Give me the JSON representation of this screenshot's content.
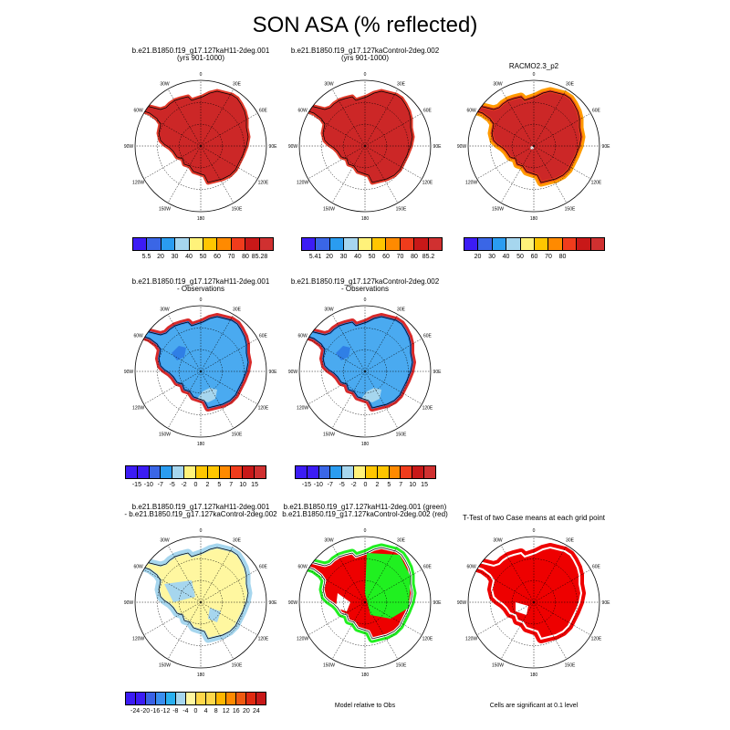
{
  "title": "SON ASA (% reflected)",
  "colors": {
    "ramp10": [
      "#3c1cf5",
      "#3a66e6",
      "#2a9cf0",
      "#a6d6ee",
      "#fff27a",
      "#ffc600",
      "#ff8a00",
      "#f03c1c",
      "#c81818",
      "#d03030"
    ],
    "diff12": [
      "#3c1cf5",
      "#3a62e6",
      "#3a8ef0",
      "#2ab0f0",
      "#a6d6ee",
      "#fff7a0",
      "#ffd84a",
      "#ffb600",
      "#ff8a00",
      "#f05a10",
      "#e02a10",
      "#c81818"
    ]
  },
  "panels": [
    {
      "id": "p1",
      "title_lines": [
        "b.e21.B1850.f19_g17.127kaH11-2deg.001",
        "(yrs 901-1000)"
      ],
      "fill": "red",
      "colorbar": {
        "scheme": "ramp10",
        "labels": [
          "5.5",
          "20",
          "30",
          "40",
          "50",
          "60",
          "70",
          "80",
          "85.28"
        ]
      }
    },
    {
      "id": "p2",
      "title_lines": [
        "b.e21.B1850.f19_g17.127kaControl-2deg.002",
        "(yrs 901-1000)"
      ],
      "fill": "red",
      "colorbar": {
        "scheme": "ramp10",
        "labels": [
          "5.41",
          "20",
          "30",
          "40",
          "50",
          "60",
          "70",
          "80",
          "85.2"
        ]
      }
    },
    {
      "id": "p3",
      "title_lines": [
        "RACMO2.3_p2"
      ],
      "fill": "obs",
      "colorbar": {
        "scheme": "ramp10",
        "labels": [
          "20",
          "30",
          "40",
          "50",
          "60",
          "70",
          "80"
        ]
      }
    },
    {
      "id": "p4",
      "title_lines": [
        "b.e21.B1850.f19_g17.127kaH11-2deg.001",
        "- Observations"
      ],
      "fill": "bias",
      "colorbar": null
    },
    {
      "id": "p5",
      "title_lines": [
        "b.e21.B1850.f19_g17.127kaControl-2deg.002",
        "- Observations"
      ],
      "fill": "bias",
      "colorbar": {
        "scheme": "ramp10",
        "labels": [
          "-15",
          "-10",
          "-7",
          "-5",
          "-2",
          "0",
          "2",
          "5",
          "7",
          "10",
          "15"
        ]
      }
    },
    {
      "id": "p7",
      "title_lines": [
        "b.e21.B1850.f19_g17.127kaH11-2deg.001",
        "- b.e21.B1850.f19_g17.127kaControl-2deg.002"
      ],
      "fill": "diff",
      "colorbar": {
        "scheme": "diff12",
        "labels": [
          "-24",
          "-20",
          "-16",
          "-12",
          "-8",
          "-4",
          "0",
          "4",
          "8",
          "12",
          "16",
          "20",
          "24"
        ]
      }
    },
    {
      "id": "p8",
      "title_lines": [
        "b.e21.B1850.f19_g17.127kaH11-2deg.001 (green)",
        "b.e21.B1850.f19_g17.127kaControl-2deg.002 (red)"
      ],
      "fill": "cmp",
      "note": "Model relative to Obs",
      "colorbar": null
    },
    {
      "id": "p9",
      "title_lines": [
        "T-Test of two Case means at each grid point"
      ],
      "fill": "ttest",
      "note": "Cells are significant at 0.1 level",
      "colorbar": null
    }
  ],
  "colorbar4": {
    "scheme": "ramp10",
    "labels": [
      "-15",
      "-10",
      "-7",
      "-5",
      "-2",
      "0",
      "2",
      "5",
      "7",
      "10",
      "15"
    ]
  },
  "map_labels": {
    "top": "0",
    "ne": "30E",
    "e2": "60E",
    "e": "90E",
    "se2": "120E",
    "se": "150E",
    "bottom": "180",
    "sw": "150W",
    "sw2": "120W",
    "w": "90W",
    "nw2": "60W",
    "nw": "30W"
  }
}
